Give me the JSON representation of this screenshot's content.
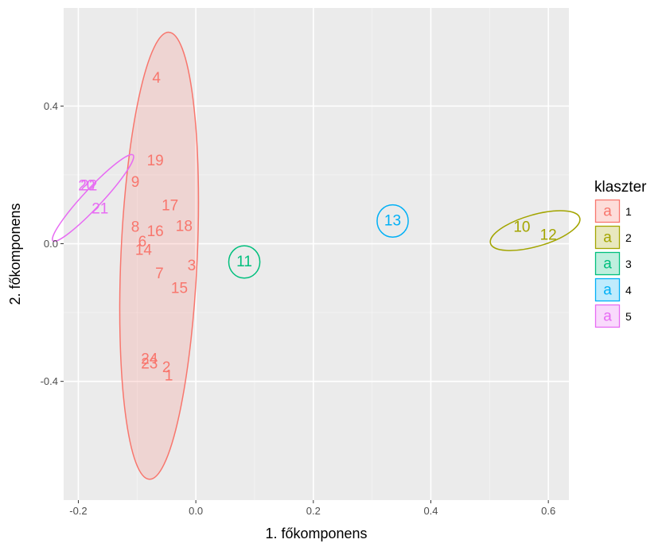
{
  "chart_data": {
    "type": "scatter",
    "title": "",
    "xlabel": "1. főkomponens",
    "ylabel": "2. főkomponens",
    "xlim": [
      -0.225,
      0.635
    ],
    "ylim": [
      -0.745,
      0.685
    ],
    "x_ticks": [
      {
        "value": -0.2,
        "label": "-0.2"
      },
      {
        "value": 0.0,
        "label": "0.0"
      },
      {
        "value": 0.2,
        "label": "0.2"
      },
      {
        "value": 0.4,
        "label": "0.4"
      },
      {
        "value": 0.6,
        "label": "0.6"
      }
    ],
    "y_ticks": [
      {
        "value": -0.4,
        "label": "-0.4"
      },
      {
        "value": 0.0,
        "label": "0.0"
      },
      {
        "value": 0.4,
        "label": "0.4"
      }
    ],
    "grid": true,
    "legend": {
      "title": "klaszter",
      "placement": "right",
      "key_glyph": "a",
      "entries": [
        {
          "label": "1",
          "color": "#F8766D"
        },
        {
          "label": "2",
          "color": "#A3A500"
        },
        {
          "label": "3",
          "color": "#00BF7D"
        },
        {
          "label": "4",
          "color": "#00B0F6"
        },
        {
          "label": "5",
          "color": "#E76BF3"
        }
      ]
    },
    "ellipses": [
      {
        "cluster": "1",
        "cx": -0.0625,
        "cy": -0.035,
        "rx": 0.065,
        "ry": 0.65,
        "angle": -2.5,
        "fill": true
      },
      {
        "cluster": "2",
        "cx": 0.5775,
        "cy": 0.038,
        "rx": 0.079,
        "ry": 0.046,
        "angle": 16,
        "fill": false
      },
      {
        "cluster": "3",
        "cx": 0.0825,
        "cy": -0.053,
        "rx": 0.0265,
        "ry": 0.047,
        "angle": 0,
        "fill": false
      },
      {
        "cluster": "4",
        "cx": 0.335,
        "cy": 0.066,
        "rx": 0.0265,
        "ry": 0.047,
        "angle": 0,
        "fill": false
      },
      {
        "cluster": "5",
        "cx": -0.175,
        "cy": 0.133,
        "rx": 0.1,
        "ry": 0.027,
        "angle": 47,
        "fill": false
      }
    ],
    "points": [
      {
        "label": "1",
        "cluster": "1",
        "x": -0.046,
        "y": -0.385
      },
      {
        "label": "2",
        "cluster": "1",
        "x": -0.05,
        "y": -0.36
      },
      {
        "label": "3",
        "cluster": "1",
        "x": -0.007,
        "y": -0.065
      },
      {
        "label": "4",
        "cluster": "1",
        "x": -0.067,
        "y": 0.48
      },
      {
        "label": "6",
        "cluster": "1",
        "x": -0.091,
        "y": 0.005
      },
      {
        "label": "7",
        "cluster": "1",
        "x": -0.062,
        "y": -0.088
      },
      {
        "label": "8",
        "cluster": "1",
        "x": -0.103,
        "y": 0.047
      },
      {
        "label": "9",
        "cluster": "1",
        "x": -0.103,
        "y": 0.178
      },
      {
        "label": "14",
        "cluster": "1",
        "x": -0.089,
        "y": -0.02
      },
      {
        "label": "15",
        "cluster": "1",
        "x": -0.028,
        "y": -0.13
      },
      {
        "label": "16",
        "cluster": "1",
        "x": -0.069,
        "y": 0.035
      },
      {
        "label": "17",
        "cluster": "1",
        "x": -0.044,
        "y": 0.11
      },
      {
        "label": "18",
        "cluster": "1",
        "x": -0.02,
        "y": 0.05
      },
      {
        "label": "19",
        "cluster": "1",
        "x": -0.069,
        "y": 0.24
      },
      {
        "label": "23",
        "cluster": "1",
        "x": -0.079,
        "y": -0.35
      },
      {
        "label": "24",
        "cluster": "1",
        "x": -0.079,
        "y": -0.336
      },
      {
        "label": "10",
        "cluster": "2",
        "x": 0.555,
        "y": 0.047
      },
      {
        "label": "12",
        "cluster": "2",
        "x": 0.6,
        "y": 0.024
      },
      {
        "label": "11",
        "cluster": "3",
        "x": 0.0825,
        "y": -0.053
      },
      {
        "label": "13",
        "cluster": "4",
        "x": 0.335,
        "y": 0.066
      },
      {
        "label": "20",
        "cluster": "5",
        "x": -0.186,
        "y": 0.168
      },
      {
        "label": "22",
        "cluster": "5",
        "x": -0.182,
        "y": 0.168
      },
      {
        "label": "21",
        "cluster": "5",
        "x": -0.163,
        "y": 0.1
      }
    ]
  }
}
